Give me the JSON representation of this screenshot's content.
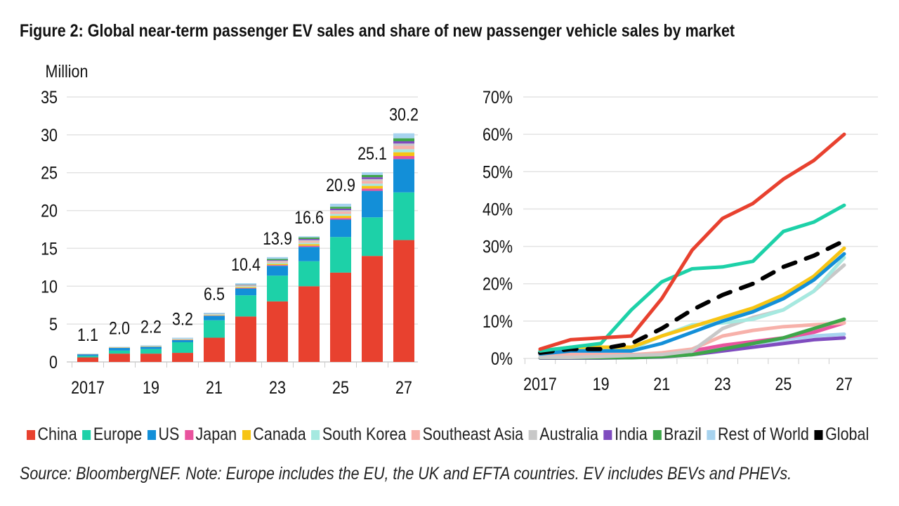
{
  "title": "Figure 2: Global near-term passenger EV sales and share of new passenger vehicle sales by market",
  "source": "Source: BloombergNEF. Note: Europe includes the EU, the UK and EFTA countries. EV includes BEVs and PHEVs.",
  "legend": [
    {
      "name": "China",
      "color": "#e8412f"
    },
    {
      "name": "Europe",
      "color": "#1dd1a8"
    },
    {
      "name": "US",
      "color": "#138fd8"
    },
    {
      "name": "Japan",
      "color": "#e9539e"
    },
    {
      "name": "Canada",
      "color": "#f7c414"
    },
    {
      "name": "South Korea",
      "color": "#a6e9e0"
    },
    {
      "name": "Southeast Asia",
      "color": "#f7b1aa"
    },
    {
      "name": "Australia",
      "color": "#c8c8c8"
    },
    {
      "name": "India",
      "color": "#7f4cbf"
    },
    {
      "name": "Brazil",
      "color": "#3ea64a"
    },
    {
      "name": "Rest of World",
      "color": "#a7d3ef"
    },
    {
      "name": "Global",
      "color": "#000000"
    }
  ],
  "chart_data": [
    {
      "type": "bar",
      "stacked": true,
      "ylabel": "Million",
      "ylim": [
        0,
        35
      ],
      "yticks": [
        "0",
        "5",
        "10",
        "15",
        "20",
        "25",
        "30",
        "35"
      ],
      "categories": [
        "2017",
        "2018",
        "2019",
        "2020",
        "2021",
        "2022",
        "2023",
        "2024",
        "2025",
        "2026",
        "2027"
      ],
      "xtick_labels": [
        "2017",
        "",
        "19",
        "",
        "21",
        "",
        "23",
        "",
        "25",
        "",
        "27"
      ],
      "grid": true,
      "totals": [
        "1.1",
        "2.0",
        "2.2",
        "3.2",
        "6.5",
        "10.4",
        "13.9",
        "16.6",
        "20.9",
        "25.1",
        "30.2"
      ],
      "series": [
        {
          "name": "China",
          "values": [
            0.6,
            1.1,
            1.1,
            1.2,
            3.2,
            6.0,
            8.0,
            10.0,
            11.8,
            14.0,
            16.1
          ]
        },
        {
          "name": "Europe",
          "values": [
            0.2,
            0.4,
            0.6,
            1.4,
            2.3,
            2.8,
            3.4,
            3.3,
            4.7,
            5.1,
            6.3
          ]
        },
        {
          "name": "US",
          "values": [
            0.2,
            0.35,
            0.3,
            0.3,
            0.6,
            0.9,
            1.3,
            1.9,
            2.3,
            3.5,
            4.4
          ]
        },
        {
          "name": "Japan",
          "values": [
            0.02,
            0.03,
            0.02,
            0.03,
            0.04,
            0.08,
            0.1,
            0.15,
            0.2,
            0.3,
            0.4
          ]
        },
        {
          "name": "Canada",
          "values": [
            0.02,
            0.05,
            0.05,
            0.05,
            0.06,
            0.1,
            0.15,
            0.2,
            0.3,
            0.35,
            0.5
          ]
        },
        {
          "name": "South Korea",
          "values": [
            0.02,
            0.03,
            0.04,
            0.05,
            0.08,
            0.12,
            0.15,
            0.2,
            0.25,
            0.3,
            0.4
          ]
        },
        {
          "name": "Southeast Asia",
          "values": [
            0.0,
            0.0,
            0.01,
            0.02,
            0.03,
            0.08,
            0.15,
            0.2,
            0.3,
            0.35,
            0.45
          ]
        },
        {
          "name": "Australia",
          "values": [
            0.0,
            0.0,
            0.01,
            0.01,
            0.02,
            0.05,
            0.1,
            0.15,
            0.2,
            0.25,
            0.3
          ]
        },
        {
          "name": "India",
          "values": [
            0.0,
            0.0,
            0.0,
            0.01,
            0.02,
            0.05,
            0.1,
            0.15,
            0.2,
            0.25,
            0.3
          ]
        },
        {
          "name": "Brazil",
          "values": [
            0.0,
            0.0,
            0.0,
            0.01,
            0.02,
            0.05,
            0.15,
            0.2,
            0.25,
            0.3,
            0.4
          ]
        },
        {
          "name": "Rest of World",
          "values": [
            0.04,
            0.04,
            0.07,
            0.12,
            0.13,
            0.17,
            0.25,
            0.15,
            0.4,
            0.35,
            0.65
          ]
        }
      ]
    },
    {
      "type": "line",
      "ylim": [
        0,
        70
      ],
      "yticks": [
        "0%",
        "10%",
        "20%",
        "30%",
        "40%",
        "50%",
        "60%",
        "70%"
      ],
      "categories": [
        "2017",
        "2018",
        "2019",
        "2020",
        "2021",
        "2022",
        "2023",
        "2024",
        "2025",
        "2026",
        "2027"
      ],
      "xtick_labels": [
        "2017",
        "",
        "19",
        "",
        "21",
        "",
        "23",
        "",
        "25",
        "",
        "27"
      ],
      "grid": true,
      "series": [
        {
          "name": "India",
          "values": [
            0.1,
            0.1,
            0.1,
            0.2,
            0.4,
            1,
            2,
            3,
            4,
            5,
            5.5
          ]
        },
        {
          "name": "Rest of World",
          "values": [
            1,
            1,
            1,
            1,
            1,
            1.5,
            3,
            4,
            5,
            6,
            6.5
          ]
        },
        {
          "name": "Japan",
          "values": [
            1,
            1,
            1,
            1,
            1,
            2,
            3.5,
            4.5,
            5.5,
            7,
            9.5
          ]
        },
        {
          "name": "Southeast Asia",
          "values": [
            1,
            1,
            1,
            1,
            1.5,
            2.5,
            6,
            7.5,
            8.5,
            9,
            9.5
          ]
        },
        {
          "name": "Brazil",
          "values": [
            0.2,
            0.2,
            0.2,
            0.2,
            0.5,
            1,
            2.5,
            4,
            5.5,
            8,
            10.5
          ]
        },
        {
          "name": "Australia",
          "values": [
            0.3,
            0.3,
            0.5,
            0.8,
            1,
            2,
            8,
            11,
            13,
            18,
            25
          ]
        },
        {
          "name": "South Korea",
          "values": [
            2,
            2.5,
            2.5,
            2.5,
            6,
            9,
            9.5,
            10.5,
            13,
            18,
            27
          ]
        },
        {
          "name": "Canada",
          "values": [
            2,
            3,
            3,
            3,
            6,
            8.5,
            11,
            13.5,
            17,
            22,
            29.5
          ]
        },
        {
          "name": "US",
          "values": [
            1.2,
            2,
            2,
            2,
            4,
            7,
            10,
            12.5,
            16,
            21,
            28
          ]
        },
        {
          "name": "Global",
          "values": [
            1.5,
            2.5,
            2.5,
            4,
            8,
            13,
            17,
            20,
            24.5,
            27.5,
            31.5
          ]
        },
        {
          "name": "Europe",
          "values": [
            2,
            3,
            4,
            13,
            20.5,
            24,
            24.5,
            26,
            34,
            36.5,
            41
          ]
        },
        {
          "name": "China",
          "values": [
            2.5,
            5,
            5.5,
            6,
            16,
            29,
            37.5,
            41.5,
            48,
            53,
            60
          ]
        }
      ]
    }
  ]
}
